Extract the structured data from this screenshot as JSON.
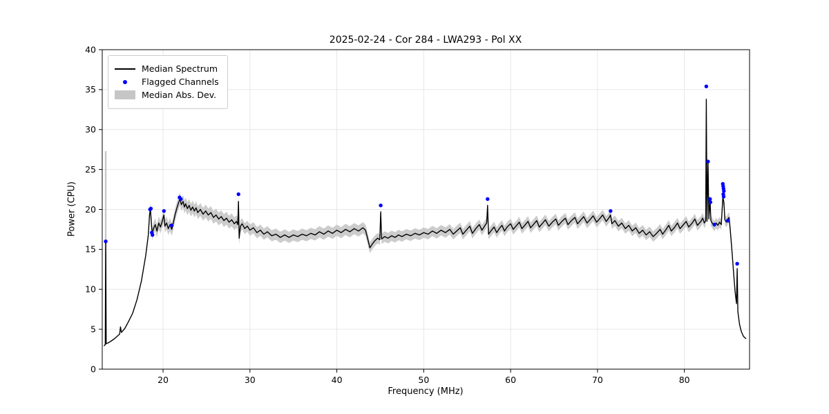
{
  "title": "2025-02-24 - Cor 284 - LWA293 - Pol XX",
  "chart_data": {
    "type": "line",
    "title": "2025-02-24 - Cor 284 - LWA293 - Pol XX",
    "xlabel": "Frequency (MHz)",
    "ylabel": "Power (CPU)",
    "xlim": [
      13.0,
      87.5
    ],
    "ylim": [
      0,
      40
    ],
    "x_ticks": [
      20,
      30,
      40,
      50,
      60,
      70,
      80
    ],
    "y_ticks": [
      0,
      5,
      10,
      15,
      20,
      25,
      30,
      35,
      40
    ],
    "grid": true,
    "colors": {
      "spectrum": "#000000",
      "flagged": "#0000ff",
      "band": "#c6c6c6",
      "grid": "#e6e6e6",
      "frame": "#000000"
    },
    "legend": {
      "position": "upper-left",
      "entries": [
        {
          "label": "Median Spectrum",
          "type": "line",
          "color": "#000000"
        },
        {
          "label": "Flagged Channels",
          "type": "dot",
          "color": "#0000ff"
        },
        {
          "label": "Median Abs. Dev.",
          "type": "patch",
          "color": "#c6c6c6"
        }
      ]
    },
    "series": [
      {
        "name": "Median Spectrum",
        "color": "#000000",
        "points": [
          [
            13.2,
            2.9
          ],
          [
            13.35,
            3.1
          ],
          [
            13.4,
            15.9
          ],
          [
            13.45,
            3.2
          ],
          [
            13.7,
            3.3
          ],
          [
            14.0,
            3.5
          ],
          [
            14.5,
            3.9
          ],
          [
            15.0,
            4.4
          ],
          [
            15.1,
            5.3
          ],
          [
            15.2,
            4.6
          ],
          [
            15.6,
            5.1
          ],
          [
            16.0,
            5.9
          ],
          [
            16.5,
            7.0
          ],
          [
            17.0,
            8.7
          ],
          [
            17.5,
            11.0
          ],
          [
            18.0,
            14.2
          ],
          [
            18.3,
            16.8
          ],
          [
            18.45,
            19.4
          ],
          [
            18.55,
            20.0
          ],
          [
            18.65,
            18.3
          ],
          [
            18.75,
            16.9
          ],
          [
            18.9,
            17.6
          ],
          [
            19.1,
            18.1
          ],
          [
            19.3,
            17.3
          ],
          [
            19.5,
            18.3
          ],
          [
            19.7,
            17.8
          ],
          [
            19.9,
            18.5
          ],
          [
            20.1,
            19.3
          ],
          [
            20.2,
            17.9
          ],
          [
            20.4,
            18.3
          ],
          [
            20.6,
            17.6
          ],
          [
            20.8,
            18.1
          ],
          [
            21.0,
            17.5
          ],
          [
            21.2,
            18.4
          ],
          [
            21.4,
            19.4
          ],
          [
            21.6,
            20.2
          ],
          [
            21.8,
            20.9
          ],
          [
            21.95,
            21.3
          ],
          [
            22.1,
            20.6
          ],
          [
            22.3,
            21.0
          ],
          [
            22.45,
            20.3
          ],
          [
            22.6,
            20.7
          ],
          [
            22.8,
            20.1
          ],
          [
            23.0,
            20.5
          ],
          [
            23.2,
            19.9
          ],
          [
            23.4,
            20.3
          ],
          [
            23.6,
            19.8
          ],
          [
            23.8,
            20.2
          ],
          [
            24.0,
            19.6
          ],
          [
            24.3,
            20.0
          ],
          [
            24.6,
            19.4
          ],
          [
            24.9,
            19.8
          ],
          [
            25.2,
            19.3
          ],
          [
            25.5,
            19.6
          ],
          [
            25.8,
            19.0
          ],
          [
            26.1,
            19.3
          ],
          [
            26.4,
            18.8
          ],
          [
            26.7,
            19.1
          ],
          [
            27.0,
            18.6
          ],
          [
            27.3,
            18.9
          ],
          [
            27.6,
            18.4
          ],
          [
            27.9,
            18.7
          ],
          [
            28.2,
            18.2
          ],
          [
            28.45,
            18.5
          ],
          [
            28.6,
            18.1
          ],
          [
            28.68,
            21.0
          ],
          [
            28.76,
            16.4
          ],
          [
            28.9,
            17.9
          ],
          [
            29.1,
            18.2
          ],
          [
            29.4,
            17.6
          ],
          [
            29.7,
            17.9
          ],
          [
            30.0,
            17.4
          ],
          [
            30.4,
            17.7
          ],
          [
            30.8,
            17.1
          ],
          [
            31.2,
            17.4
          ],
          [
            31.6,
            16.9
          ],
          [
            32.0,
            17.2
          ],
          [
            32.5,
            16.7
          ],
          [
            33.0,
            16.9
          ],
          [
            33.5,
            16.5
          ],
          [
            34.0,
            16.8
          ],
          [
            34.5,
            16.5
          ],
          [
            35.0,
            16.8
          ],
          [
            35.5,
            16.6
          ],
          [
            36.0,
            16.9
          ],
          [
            36.5,
            16.7
          ],
          [
            37.0,
            17.0
          ],
          [
            37.5,
            16.8
          ],
          [
            38.0,
            17.2
          ],
          [
            38.5,
            16.9
          ],
          [
            39.0,
            17.3
          ],
          [
            39.5,
            17.0
          ],
          [
            40.0,
            17.4
          ],
          [
            40.5,
            17.1
          ],
          [
            41.0,
            17.5
          ],
          [
            41.5,
            17.2
          ],
          [
            42.0,
            17.6
          ],
          [
            42.5,
            17.3
          ],
          [
            43.0,
            17.7
          ],
          [
            43.3,
            17.4
          ],
          [
            43.6,
            16.1
          ],
          [
            43.8,
            15.2
          ],
          [
            44.1,
            15.7
          ],
          [
            44.4,
            16.1
          ],
          [
            44.7,
            16.4
          ],
          [
            44.95,
            16.2
          ],
          [
            45.05,
            19.7
          ],
          [
            45.15,
            16.3
          ],
          [
            45.5,
            16.6
          ],
          [
            45.9,
            16.4
          ],
          [
            46.3,
            16.7
          ],
          [
            46.7,
            16.5
          ],
          [
            47.1,
            16.8
          ],
          [
            47.5,
            16.6
          ],
          [
            48.0,
            16.9
          ],
          [
            48.5,
            16.7
          ],
          [
            49.0,
            17.0
          ],
          [
            49.5,
            16.8
          ],
          [
            50.0,
            17.1
          ],
          [
            50.5,
            16.9
          ],
          [
            51.0,
            17.3
          ],
          [
            51.5,
            17.0
          ],
          [
            52.0,
            17.4
          ],
          [
            52.5,
            17.1
          ],
          [
            53.0,
            17.5
          ],
          [
            53.4,
            16.9
          ],
          [
            53.8,
            17.3
          ],
          [
            54.2,
            17.7
          ],
          [
            54.5,
            16.9
          ],
          [
            54.9,
            17.4
          ],
          [
            55.3,
            17.9
          ],
          [
            55.6,
            17.0
          ],
          [
            56.0,
            17.6
          ],
          [
            56.4,
            18.1
          ],
          [
            56.7,
            17.4
          ],
          [
            57.0,
            17.9
          ],
          [
            57.25,
            18.3
          ],
          [
            57.35,
            20.5
          ],
          [
            57.45,
            16.9
          ],
          [
            57.8,
            17.4
          ],
          [
            58.1,
            17.8
          ],
          [
            58.4,
            17.1
          ],
          [
            58.7,
            17.6
          ],
          [
            59.0,
            18.0
          ],
          [
            59.3,
            17.3
          ],
          [
            59.6,
            17.8
          ],
          [
            60.0,
            18.2
          ],
          [
            60.3,
            17.5
          ],
          [
            60.7,
            18.0
          ],
          [
            61.0,
            18.4
          ],
          [
            61.3,
            17.6
          ],
          [
            61.7,
            18.1
          ],
          [
            62.0,
            18.5
          ],
          [
            62.3,
            17.7
          ],
          [
            62.7,
            18.2
          ],
          [
            63.0,
            18.6
          ],
          [
            63.3,
            17.8
          ],
          [
            63.7,
            18.3
          ],
          [
            64.0,
            18.7
          ],
          [
            64.4,
            17.9
          ],
          [
            64.8,
            18.4
          ],
          [
            65.2,
            18.8
          ],
          [
            65.5,
            18.0
          ],
          [
            65.9,
            18.5
          ],
          [
            66.3,
            18.9
          ],
          [
            66.6,
            18.1
          ],
          [
            67.0,
            18.6
          ],
          [
            67.4,
            19.0
          ],
          [
            67.7,
            18.2
          ],
          [
            68.1,
            18.7
          ],
          [
            68.4,
            19.1
          ],
          [
            68.8,
            18.3
          ],
          [
            69.2,
            18.8
          ],
          [
            69.5,
            19.2
          ],
          [
            69.9,
            18.4
          ],
          [
            70.3,
            18.9
          ],
          [
            70.6,
            19.3
          ],
          [
            71.0,
            18.5
          ],
          [
            71.35,
            19.0
          ],
          [
            71.5,
            19.3
          ],
          [
            71.65,
            18.2
          ],
          [
            72.0,
            18.6
          ],
          [
            72.4,
            17.9
          ],
          [
            72.8,
            18.3
          ],
          [
            73.2,
            17.6
          ],
          [
            73.6,
            18.0
          ],
          [
            74.0,
            17.3
          ],
          [
            74.4,
            17.7
          ],
          [
            74.8,
            17.0
          ],
          [
            75.2,
            17.4
          ],
          [
            75.6,
            16.8
          ],
          [
            76.0,
            17.2
          ],
          [
            76.4,
            16.6
          ],
          [
            76.8,
            17.0
          ],
          [
            77.2,
            17.5
          ],
          [
            77.5,
            16.9
          ],
          [
            77.9,
            17.5
          ],
          [
            78.2,
            18.0
          ],
          [
            78.5,
            17.3
          ],
          [
            78.9,
            17.8
          ],
          [
            79.2,
            18.3
          ],
          [
            79.5,
            17.6
          ],
          [
            79.9,
            18.1
          ],
          [
            80.2,
            18.5
          ],
          [
            80.5,
            17.8
          ],
          [
            80.9,
            18.3
          ],
          [
            81.2,
            18.8
          ],
          [
            81.5,
            18.0
          ],
          [
            81.9,
            18.5
          ],
          [
            82.1,
            18.9
          ],
          [
            82.3,
            18.3
          ],
          [
            82.45,
            18.6
          ],
          [
            82.52,
            33.8
          ],
          [
            82.6,
            18.5
          ],
          [
            82.72,
            25.9
          ],
          [
            82.82,
            18.8
          ],
          [
            82.95,
            21.2
          ],
          [
            83.05,
            18.6
          ],
          [
            83.25,
            18.2
          ],
          [
            83.45,
            17.9
          ],
          [
            83.65,
            18.3
          ],
          [
            83.85,
            18.0
          ],
          [
            84.05,
            18.4
          ],
          [
            84.25,
            18.1
          ],
          [
            84.42,
            21.5
          ],
          [
            84.55,
            20.9
          ],
          [
            84.65,
            18.7
          ],
          [
            84.85,
            18.4
          ],
          [
            85.0,
            18.8
          ],
          [
            85.15,
            19.0
          ],
          [
            85.3,
            17.2
          ],
          [
            85.5,
            14.5
          ],
          [
            85.7,
            11.5
          ],
          [
            85.85,
            9.6
          ],
          [
            86.0,
            8.2
          ],
          [
            86.08,
            12.6
          ],
          [
            86.16,
            7.2
          ],
          [
            86.35,
            5.6
          ],
          [
            86.55,
            4.7
          ],
          [
            86.8,
            4.1
          ],
          [
            87.1,
            3.8
          ]
        ]
      }
    ],
    "flagged": {
      "name": "Flagged Channels",
      "color": "#0000ff",
      "points": [
        [
          13.4,
          16.0
        ],
        [
          18.5,
          20.0
        ],
        [
          18.6,
          20.1
        ],
        [
          18.7,
          17.1
        ],
        [
          18.78,
          16.8
        ],
        [
          20.1,
          19.8
        ],
        [
          21.0,
          18.0
        ],
        [
          21.9,
          21.5
        ],
        [
          22.05,
          21.3
        ],
        [
          28.68,
          21.9
        ],
        [
          45.05,
          20.5
        ],
        [
          57.35,
          21.3
        ],
        [
          71.5,
          19.8
        ],
        [
          82.52,
          35.4
        ],
        [
          82.72,
          26.0
        ],
        [
          82.95,
          21.3
        ],
        [
          83.0,
          20.9
        ],
        [
          83.45,
          18.1
        ],
        [
          84.42,
          23.2
        ],
        [
          84.46,
          22.9
        ],
        [
          84.5,
          22.6
        ],
        [
          84.54,
          22.3
        ],
        [
          84.48,
          21.9
        ],
        [
          84.52,
          21.6
        ],
        [
          85.0,
          18.6
        ],
        [
          86.08,
          13.2
        ]
      ]
    },
    "band": {
      "name": "Median Abs. Dev.",
      "color": "#c6c6c6",
      "segments": [
        {
          "range": [
            18.4,
            29.0
          ],
          "hw": 0.8
        },
        {
          "range": [
            29.0,
            44.0
          ],
          "hw": 0.7
        },
        {
          "range": [
            44.0,
            85.3
          ],
          "hw": 0.65
        }
      ],
      "spike": {
        "f": 13.4,
        "y0": 3.0,
        "y1": 27.3
      }
    }
  }
}
